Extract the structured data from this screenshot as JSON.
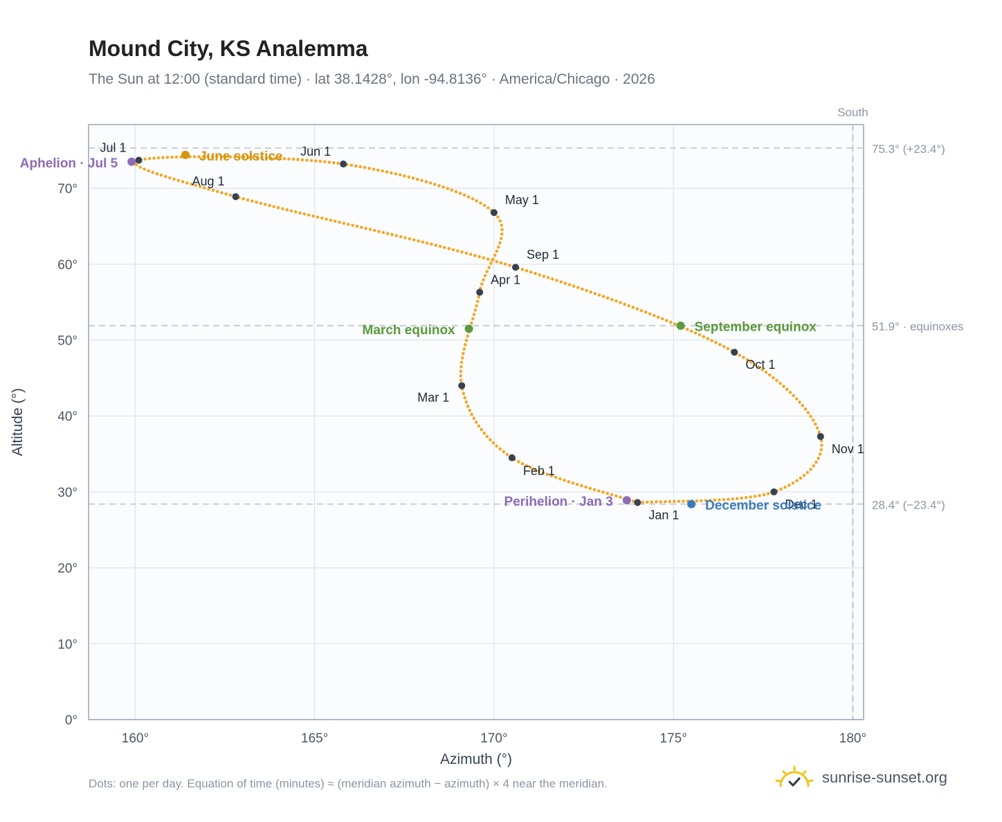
{
  "header": {
    "title": "Mound City, KS Analemma",
    "subtitle": "The Sun at 12:00 (standard time) · lat 38.1428°, lon -94.8136° · America/Chicago · 2026"
  },
  "footer": {
    "note": "Dots: one per day. Equation of time (minutes) ≈ (meridian azimuth − azimuth) × 4 near the meridian.",
    "brand": "sunrise-sunset.org"
  },
  "colors": {
    "curve": "#f5a623",
    "month_dot": "#374151",
    "aphelion": "#8e6bb5",
    "perihelion": "#8e6bb5",
    "solstice_june": "#d4950e",
    "solstice_december": "#3b7bbf",
    "equinox": "#5a9a3a",
    "grid": "#e5e7eb",
    "axis": "#9aa3b0",
    "reference_line": "#c3c9d1",
    "brand_icon": "#f2c31c"
  },
  "chart_data": {
    "type": "scatter",
    "xlabel": "Azimuth (°)",
    "ylabel": "Altitude (°)",
    "xlim": [
      158.7,
      180.3
    ],
    "ylim": [
      0,
      78.4
    ],
    "x_ticks": [
      160,
      165,
      170,
      175,
      180
    ],
    "x_tick_labels": [
      "160°",
      "165°",
      "170°",
      "175°",
      "180°"
    ],
    "y_ticks": [
      0,
      10,
      20,
      30,
      40,
      50,
      60,
      70
    ],
    "y_tick_labels": [
      "0°",
      "10°",
      "20°",
      "30°",
      "40°",
      "50°",
      "60°",
      "70°"
    ],
    "grid": true,
    "south_marker": {
      "azimuth": 180,
      "label": "South"
    },
    "reference_lines": [
      {
        "altitude": 75.3,
        "label": "75.3° (+23.4°)"
      },
      {
        "altitude": 51.9,
        "label": "51.9° · equinoxes"
      },
      {
        "altitude": 28.4,
        "label": "28.4° (−23.4°)"
      }
    ],
    "series": [
      {
        "points": [
          [
            174.0,
            28.6
          ],
          [
            170.5,
            34.5
          ],
          [
            169.1,
            44.0
          ],
          [
            169.6,
            56.3
          ],
          [
            170.0,
            66.8
          ],
          [
            165.8,
            73.2
          ],
          [
            160.1,
            73.7
          ],
          [
            162.8,
            68.9
          ],
          [
            170.6,
            59.6
          ],
          [
            176.7,
            48.4
          ],
          [
            179.1,
            37.3
          ],
          [
            177.8,
            30.0
          ],
          [
            174.0,
            28.6
          ]
        ]
      }
    ],
    "month_markers": [
      {
        "label": "Jan 1",
        "azimuth": 174.0,
        "altitude": 28.6
      },
      {
        "label": "Feb 1",
        "azimuth": 170.5,
        "altitude": 34.5
      },
      {
        "label": "Mar 1",
        "azimuth": 169.1,
        "altitude": 44.0
      },
      {
        "label": "Apr 1",
        "azimuth": 169.6,
        "altitude": 56.3
      },
      {
        "label": "May 1",
        "azimuth": 170.0,
        "altitude": 66.8
      },
      {
        "label": "Jun 1",
        "azimuth": 165.8,
        "altitude": 73.2
      },
      {
        "label": "Jul 1",
        "azimuth": 160.1,
        "altitude": 73.7
      },
      {
        "label": "Aug 1",
        "azimuth": 162.8,
        "altitude": 68.9
      },
      {
        "label": "Sep 1",
        "azimuth": 170.6,
        "altitude": 59.6
      },
      {
        "label": "Oct 1",
        "azimuth": 176.7,
        "altitude": 48.4
      },
      {
        "label": "Nov 1",
        "azimuth": 179.1,
        "altitude": 37.3
      },
      {
        "label": "Dec 1",
        "azimuth": 177.8,
        "altitude": 30.0
      }
    ],
    "events": [
      {
        "label": "Aphelion · Jul 5",
        "azimuth": 159.9,
        "altitude": 73.5,
        "color_key": "aphelion"
      },
      {
        "label": "June solstice",
        "azimuth": 161.4,
        "altitude": 74.4,
        "color_key": "solstice_june"
      },
      {
        "label": "March equinox",
        "azimuth": 169.3,
        "altitude": 51.5,
        "color_key": "equinox"
      },
      {
        "label": "September equinox",
        "azimuth": 175.2,
        "altitude": 51.9,
        "color_key": "equinox"
      },
      {
        "label": "Perihelion · Jan 3",
        "azimuth": 173.7,
        "altitude": 28.9,
        "color_key": "perihelion"
      },
      {
        "label": "December solstice",
        "azimuth": 175.5,
        "altitude": 28.4,
        "color_key": "solstice_december"
      }
    ]
  }
}
